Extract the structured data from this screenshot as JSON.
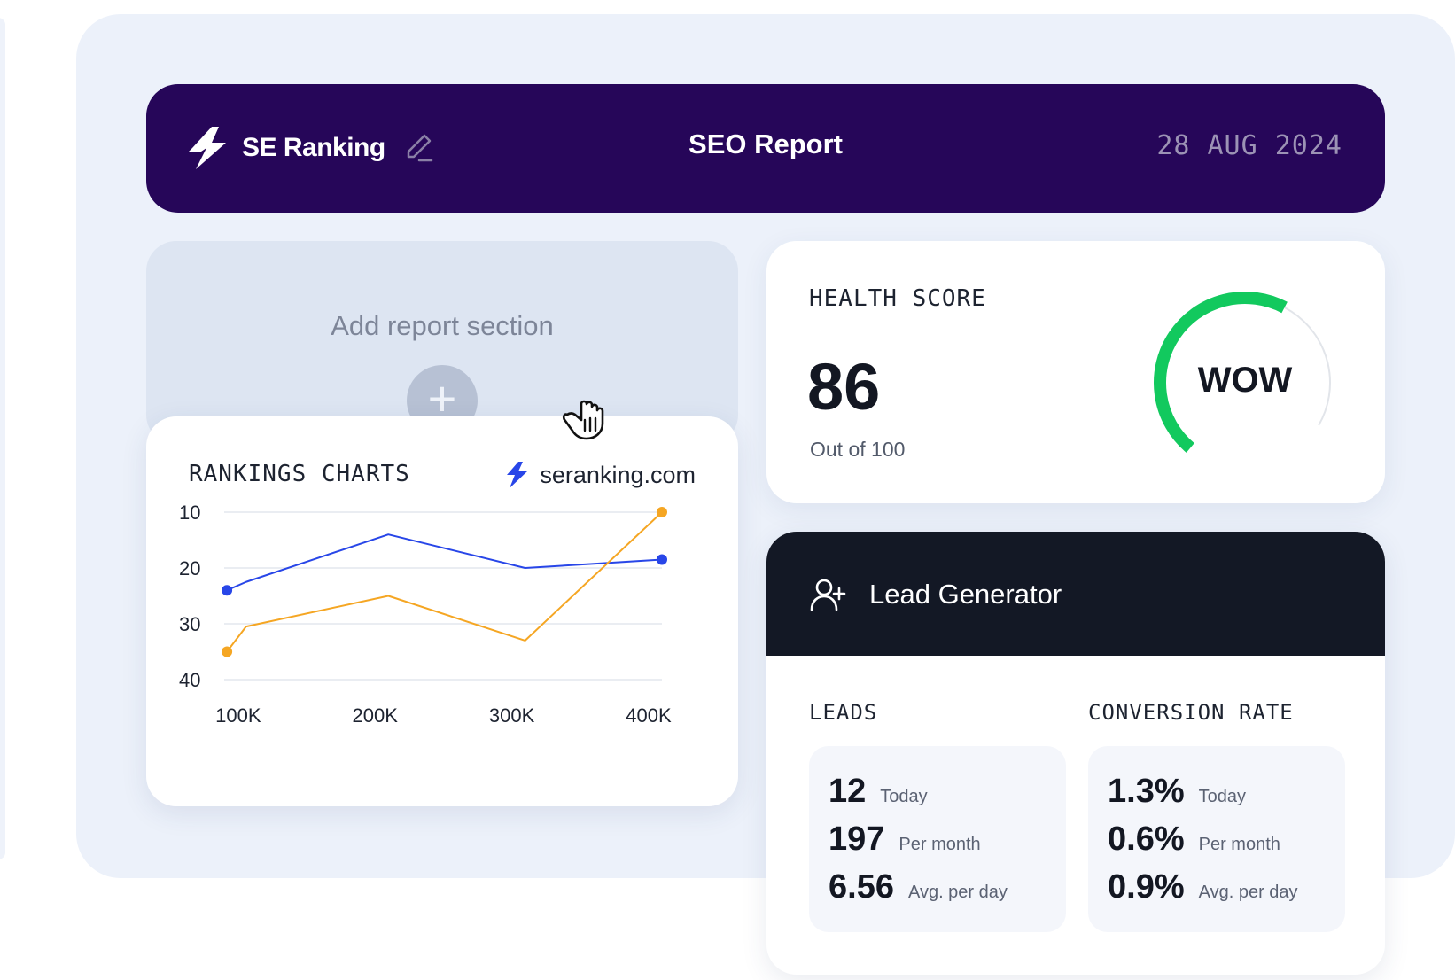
{
  "header": {
    "brand": "SE Ranking",
    "title": "SEO Report",
    "date": "28 AUG 2024"
  },
  "add_section": {
    "label": "Add report section",
    "button_icon": "plus-icon"
  },
  "rankings": {
    "title": "RANKINGS CHARTS",
    "site": "seranking.com",
    "chart_data": {
      "type": "line",
      "x": [
        100,
        200,
        300,
        400
      ],
      "x_tick_labels": [
        "100K",
        "200K",
        "300K",
        "400K"
      ],
      "y_tick_labels": [
        "10",
        "20",
        "30",
        "40"
      ],
      "ylim": [
        10,
        40
      ],
      "y_inverted": true,
      "grid": true,
      "series": [
        {
          "color": "#2846e8",
          "points": [
            [
              82,
              24
            ],
            [
              96,
              22.5
            ],
            [
              200,
              14
            ],
            [
              300,
              20
            ],
            [
              400,
              18.5
            ]
          ]
        },
        {
          "color": "#f5a623",
          "points": [
            [
              82,
              35
            ],
            [
              96,
              30.5
            ],
            [
              200,
              25
            ],
            [
              300,
              33
            ],
            [
              400,
              10
            ]
          ]
        }
      ]
    }
  },
  "health": {
    "title": "HEALTH SCORE",
    "score": "86",
    "subtitle": "Out of 100",
    "gauge_label": "WOW",
    "gauge_value": 86,
    "gauge_color": "#12c95e"
  },
  "leads": {
    "title": "Lead Generator",
    "icon": "user-plus-icon",
    "leads_title": "LEADS",
    "conversion_title": "CONVERSION RATE",
    "leads_stats": [
      {
        "value": "12",
        "label": "Today"
      },
      {
        "value": "197",
        "label": "Per month"
      },
      {
        "value": "6.56",
        "label": "Avg. per day"
      }
    ],
    "conversion_stats": [
      {
        "value": "1.3%",
        "label": "Today"
      },
      {
        "value": "0.6%",
        "label": "Per month"
      },
      {
        "value": "0.9%",
        "label": "Avg. per day"
      }
    ]
  },
  "colors": {
    "header_bg": "#260659",
    "lead_header_bg": "#131825",
    "accent_blue": "#2846e8",
    "accent_orange": "#f5a623"
  }
}
